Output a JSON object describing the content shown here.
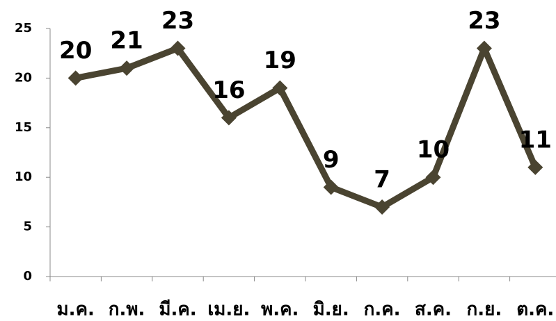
{
  "chart_data": {
    "type": "line",
    "categories": [
      "ม.ค.",
      "ก.พ.",
      "มี.ค.",
      "เม.ย.",
      "พ.ค.",
      "มิ.ย.",
      "ก.ค.",
      "ส.ค.",
      "ก.ย.",
      "ต.ค."
    ],
    "values": [
      20,
      21,
      23,
      16,
      19,
      9,
      7,
      10,
      23,
      11
    ],
    "color": "#4a4431",
    "ylim": [
      0,
      25
    ],
    "yticks": [
      0,
      5,
      10,
      15,
      20,
      25
    ],
    "grid": false
  }
}
